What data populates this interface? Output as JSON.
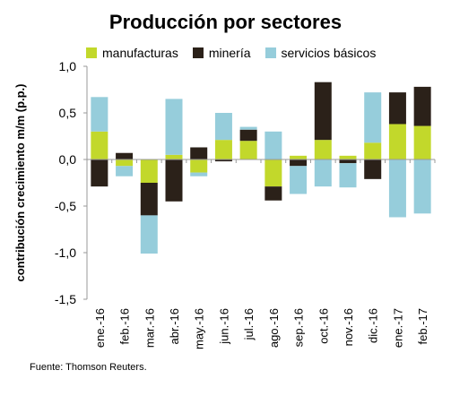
{
  "colors": {
    "manufacturas": "#c2d82b",
    "mineria": "#2b2119",
    "servicios_basicos": "#96cddb"
  },
  "source_text": "Fuente: Thomson Reuters.",
  "chart_data": {
    "type": "bar",
    "stacked": true,
    "title": "Producción por sectores",
    "ylabel": "contribución crecimiento m/m (p.p.)",
    "xlabel": "",
    "ylim": [
      -1.5,
      1.0
    ],
    "yticks": [
      1.0,
      0.5,
      0.0,
      -0.5,
      -1.0,
      -1.5
    ],
    "ytick_labels": [
      "1,0",
      "0,5",
      "0,0",
      "-0,5",
      "-1,0",
      "-1,5"
    ],
    "grid": false,
    "legend_position": "top",
    "categories": [
      "ene.-16",
      "feb.-16",
      "mar.-16",
      "abr.-16",
      "may.-16",
      "jun.-16",
      "jul.-16",
      "ago.-16",
      "sep.-16",
      "oct.-16",
      "nov.-16",
      "dic.-16",
      "ene.-17",
      "feb.-17"
    ],
    "series": [
      {
        "name": "manufacturas",
        "values": [
          0.3,
          -0.07,
          -0.25,
          0.05,
          -0.14,
          0.21,
          0.2,
          -0.29,
          0.04,
          0.21,
          0.04,
          0.18,
          0.38,
          0.36
        ]
      },
      {
        "name": "minería",
        "values": [
          -0.29,
          0.07,
          -0.35,
          -0.45,
          0.13,
          -0.02,
          0.12,
          -0.15,
          -0.07,
          0.62,
          -0.04,
          -0.21,
          0.34,
          0.42
        ]
      },
      {
        "name": "servicios básicos",
        "values": [
          0.37,
          -0.11,
          -0.41,
          0.6,
          -0.04,
          0.29,
          0.03,
          0.3,
          -0.3,
          -0.29,
          -0.26,
          0.54,
          -0.62,
          -0.58
        ]
      }
    ]
  }
}
